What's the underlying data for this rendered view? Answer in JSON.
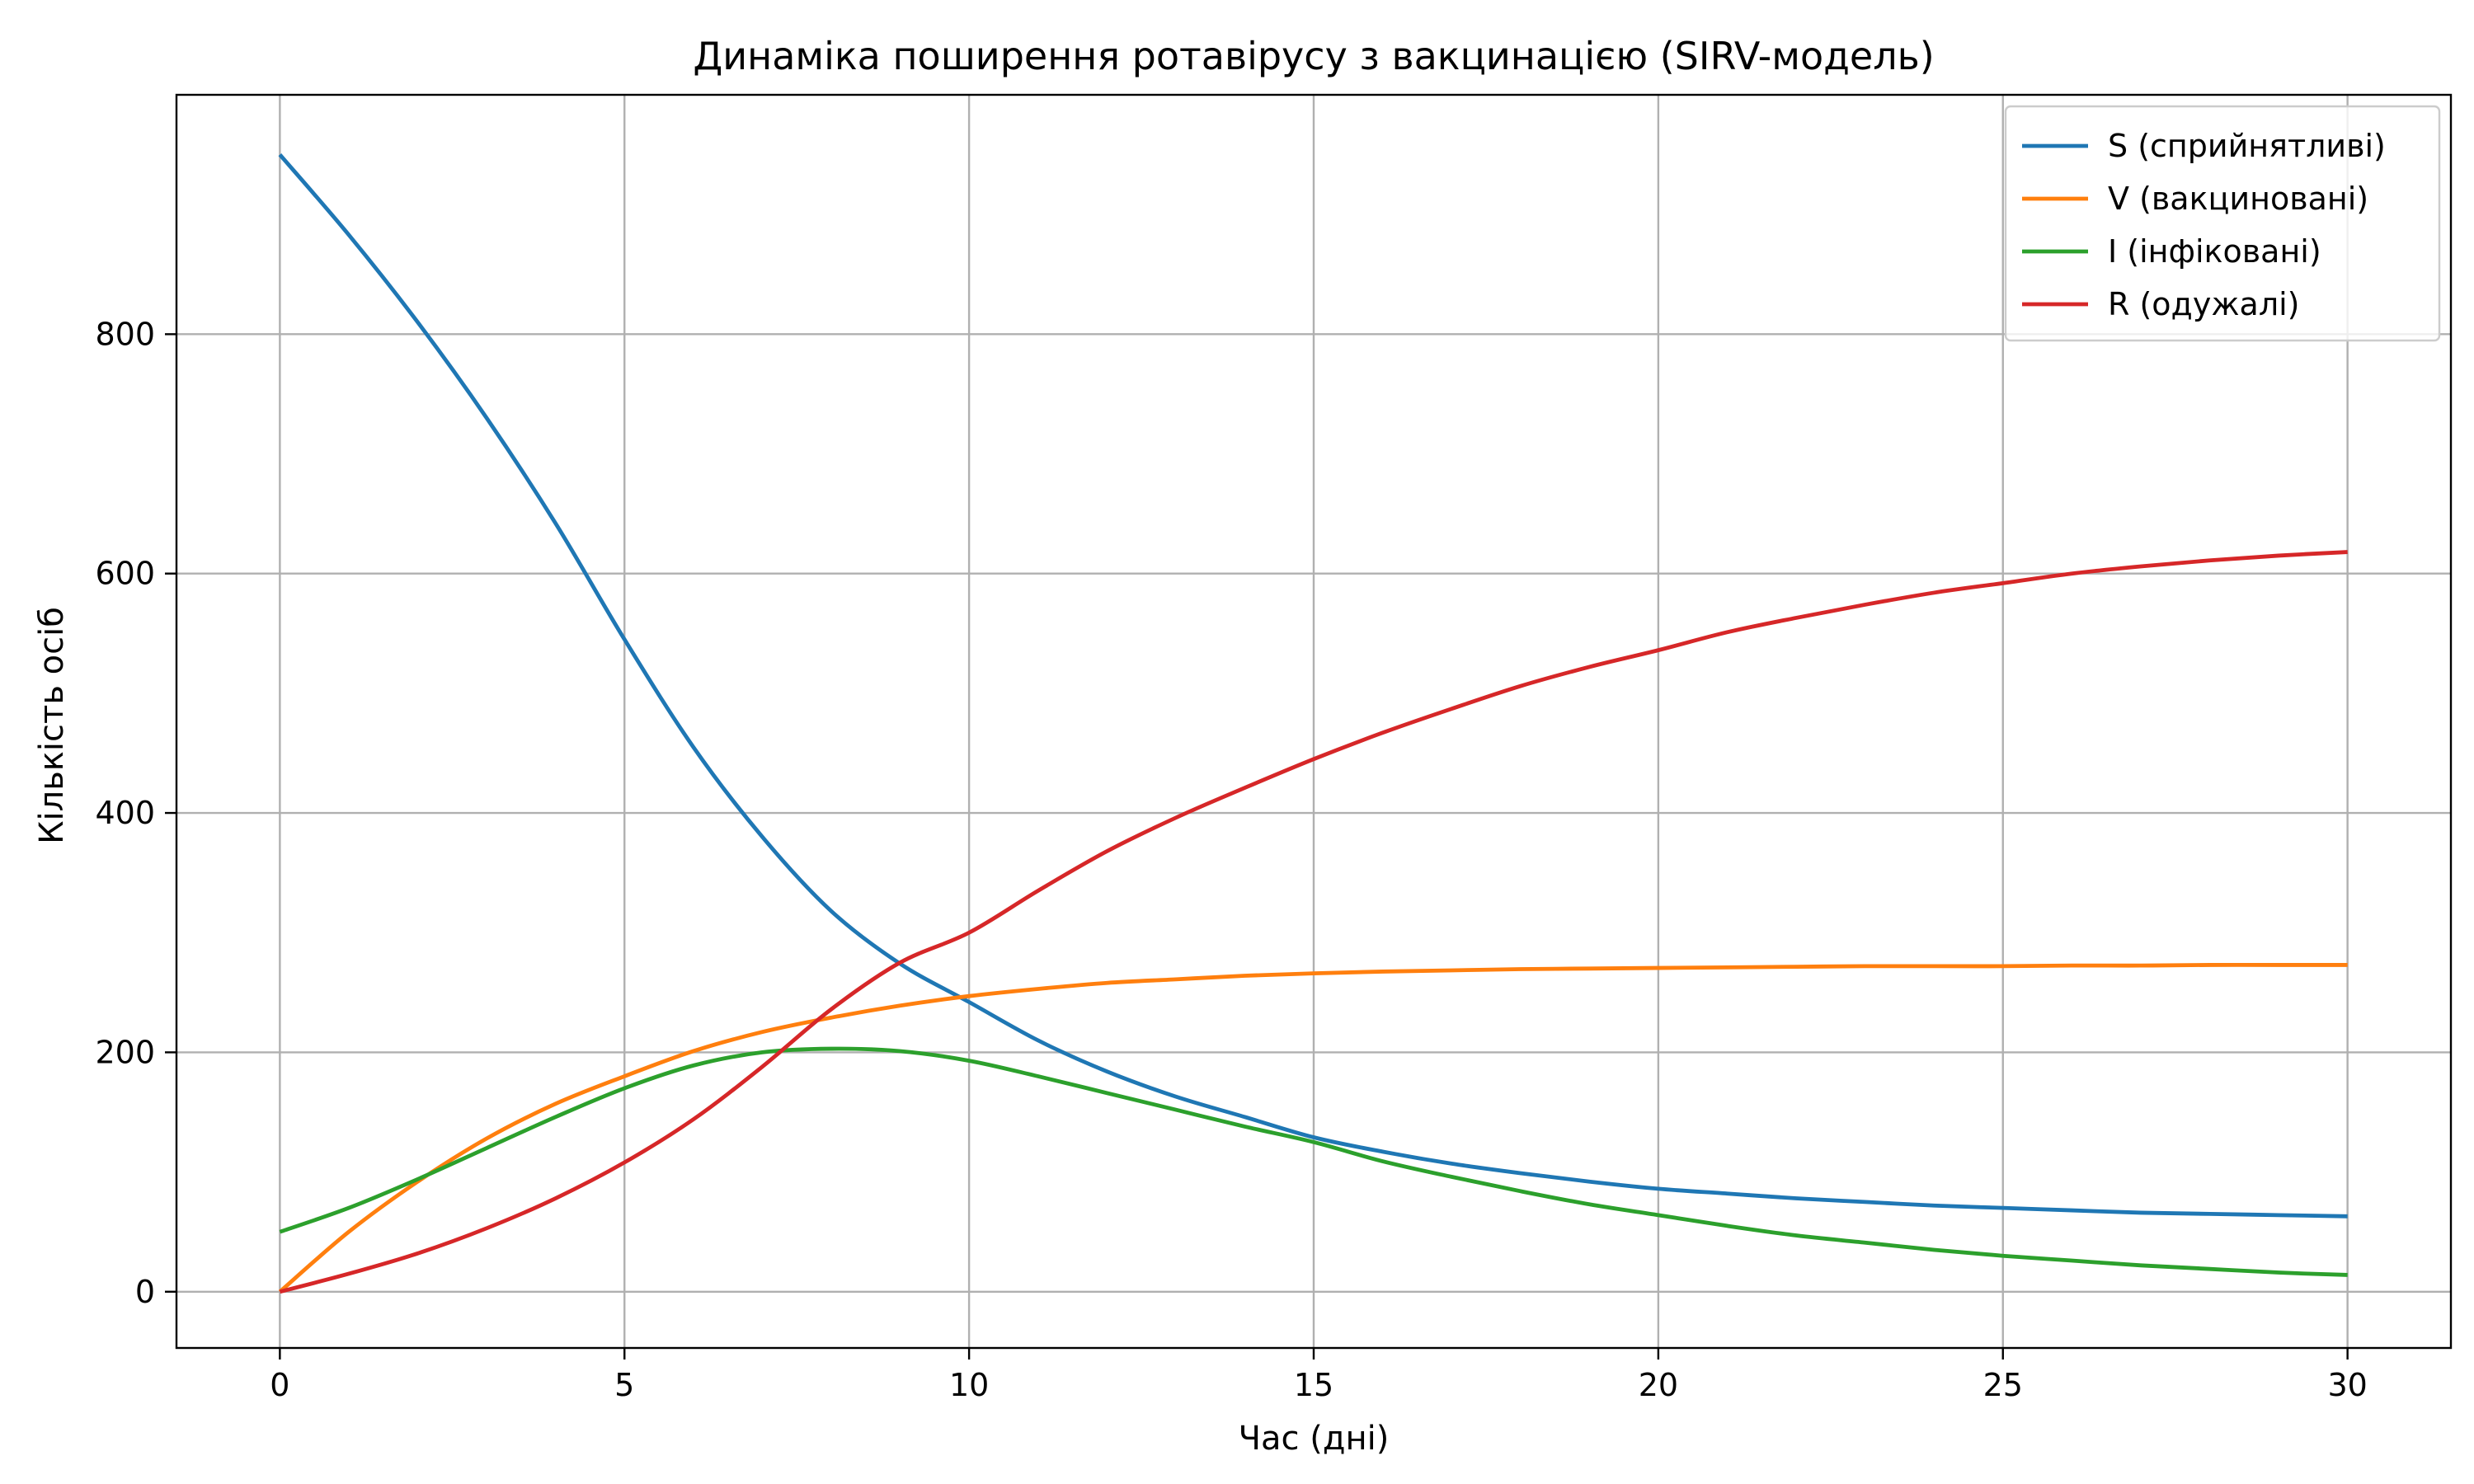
{
  "chart_data": {
    "type": "line",
    "title": "Динаміка поширення ротавірусу з вакцинацією (SIRV-модель)",
    "xlabel": "Час (дні)",
    "ylabel": "Кількість осіб",
    "xlim": [
      -1.5,
      31.5
    ],
    "ylim": [
      -47,
      1000
    ],
    "xticks": [
      0,
      5,
      10,
      15,
      20,
      25,
      30
    ],
    "yticks": [
      0,
      200,
      400,
      600,
      800
    ],
    "grid": true,
    "legend_position": "top-right",
    "x": [
      0,
      1,
      2,
      3,
      4,
      5,
      6,
      7,
      8,
      9,
      10,
      11,
      12,
      13,
      14,
      15,
      16,
      17,
      18,
      19,
      20,
      21,
      22,
      23,
      24,
      25,
      26,
      27,
      28,
      29,
      30
    ],
    "series": [
      {
        "name": "S (сприйнятливі)",
        "color": "#1f77b4",
        "values": [
          950,
          883,
          810,
          730,
          642,
          545,
          455,
          380,
          318,
          274,
          242,
          210,
          184,
          163,
          146,
          129,
          117,
          107,
          99,
          92,
          86,
          82,
          78,
          75,
          72,
          70,
          68,
          66,
          65,
          64,
          63
        ]
      },
      {
        "name": "V (вакциновані)",
        "color": "#ff7f0e",
        "values": [
          0,
          50,
          92,
          128,
          157,
          180,
          201,
          217,
          229,
          239,
          247,
          253,
          258,
          261,
          264,
          266,
          267.5,
          268.5,
          269.5,
          270,
          270.5,
          271,
          271.5,
          272,
          272,
          272,
          272.5,
          272.5,
          273,
          273,
          273
        ]
      },
      {
        "name": "I (інфіковані)",
        "color": "#2ca02c",
        "values": [
          50,
          70,
          94,
          120,
          146,
          170,
          189,
          200,
          203,
          201,
          193,
          180,
          166,
          152,
          138,
          125,
          109,
          96,
          84,
          73,
          64,
          55,
          47,
          41,
          35,
          30,
          26,
          22,
          19,
          16,
          14
        ]
      },
      {
        "name": "R (одужалі)",
        "color": "#d62728",
        "values": [
          0,
          15,
          32,
          53,
          78,
          108,
          144,
          188,
          236,
          275,
          300,
          335,
          368,
          396,
          421,
          445,
          467,
          487,
          506,
          522,
          536,
          551,
          563,
          574,
          584,
          592,
          600,
          606,
          611,
          615,
          618
        ]
      }
    ]
  }
}
